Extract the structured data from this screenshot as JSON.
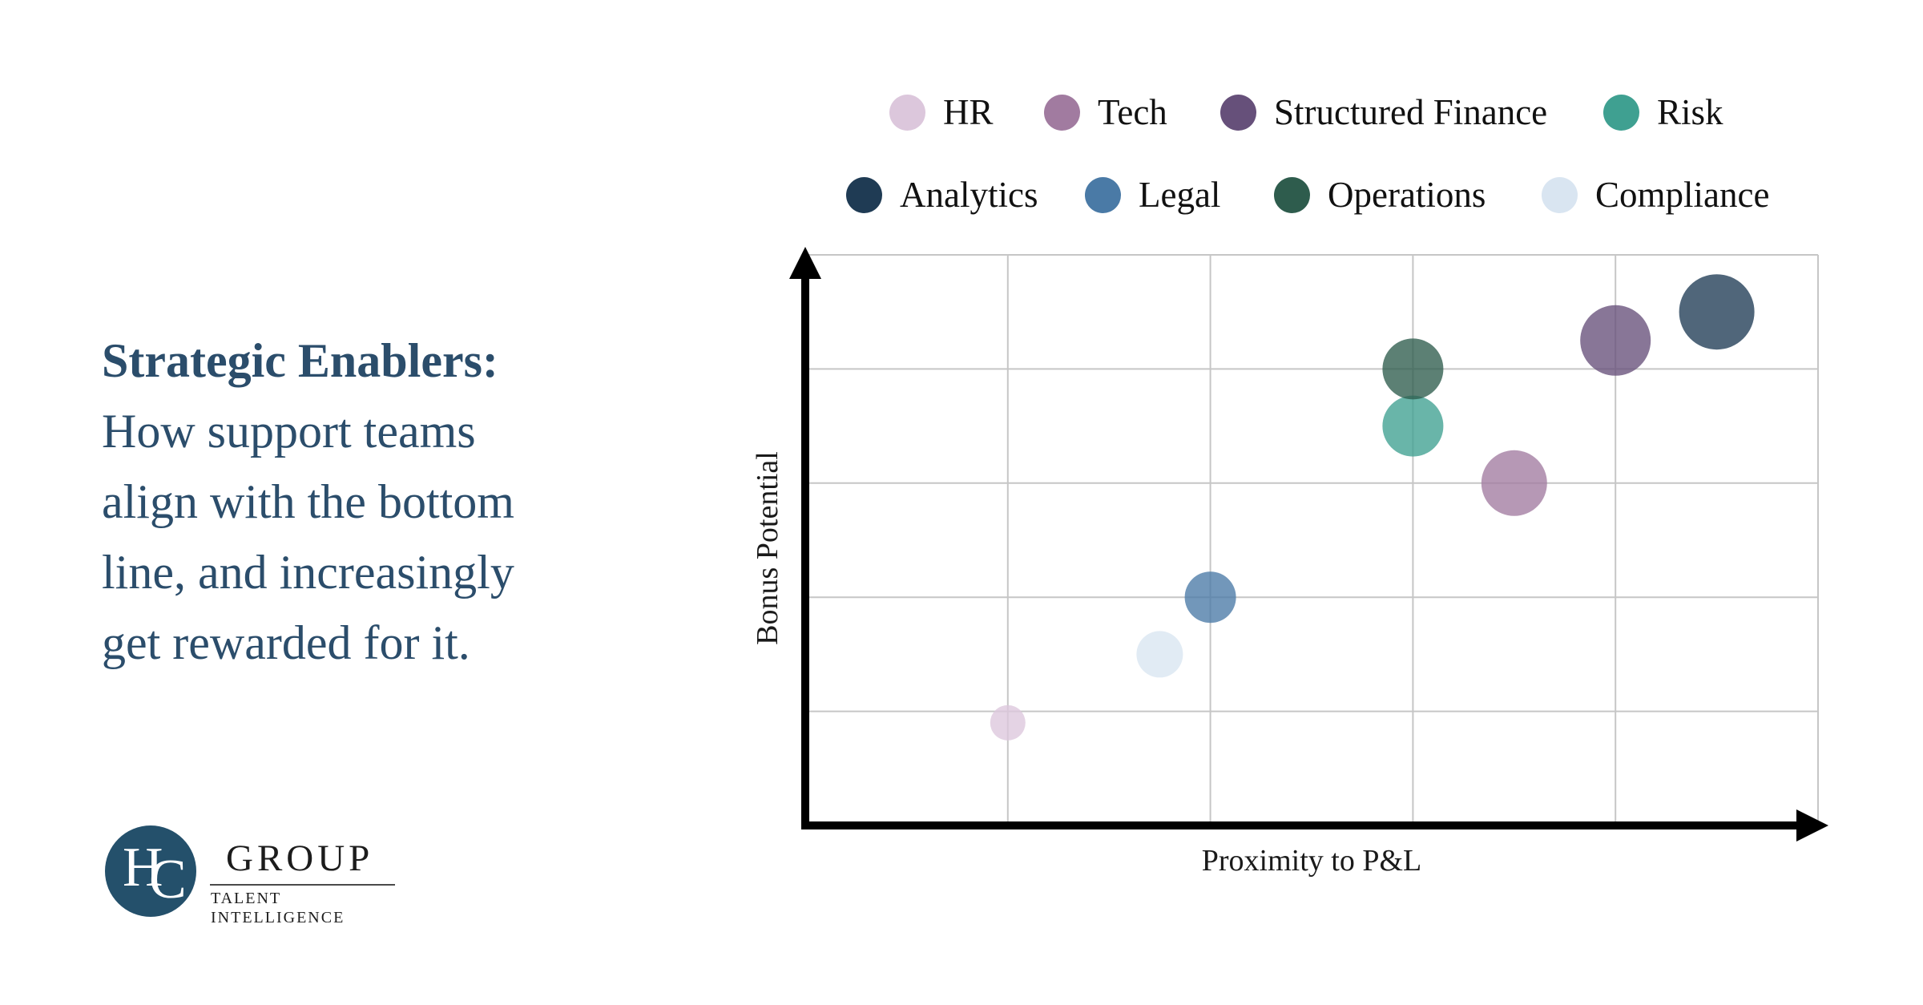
{
  "page": {
    "background_color": "#ffffff",
    "headline_color": "#2b4d6b"
  },
  "headline": {
    "bold": "Strategic Enablers:",
    "lines": [
      "How support teams",
      "align with the bottom",
      "line, and increasingly",
      "get rewarded for it."
    ]
  },
  "logo": {
    "monogram_h": "H",
    "monogram_c": "C",
    "name": "GROUP",
    "tagline": "TALENT INTELLIGENCE",
    "circle_color": "#24506b"
  },
  "chart_data": {
    "type": "scatter",
    "subtype": "bubble",
    "title": "",
    "xlabel": "Proximity to P&L",
    "ylabel": "Bonus Potential",
    "xlim": [
      0,
      5
    ],
    "ylim": [
      0,
      5
    ],
    "grid": true,
    "tick_labels_visible": false,
    "legend_position": "top",
    "legend_rows": [
      [
        "HR",
        "Tech",
        "Structured Finance",
        "Risk"
      ],
      [
        "Analytics",
        "Legal",
        "Operations",
        "Compliance"
      ]
    ],
    "bubble_opacity": 0.78,
    "gridline_color": "#c6c6c6",
    "axis_color": "#000000",
    "series": [
      {
        "name": "HR",
        "color": "#dcc7dc",
        "x": 1.0,
        "y": 0.9,
        "r": 22
      },
      {
        "name": "Compliance",
        "color": "#d9e5f1",
        "x": 1.75,
        "y": 1.5,
        "r": 29
      },
      {
        "name": "Legal",
        "color": "#4a7aa6",
        "x": 2.0,
        "y": 2.0,
        "r": 32
      },
      {
        "name": "Risk",
        "color": "#3fa091",
        "x": 3.0,
        "y": 3.5,
        "r": 38
      },
      {
        "name": "Operations",
        "color": "#2e5c4d",
        "x": 3.0,
        "y": 4.0,
        "r": 38
      },
      {
        "name": "Tech",
        "color": "#a17ba0",
        "x": 3.5,
        "y": 3.0,
        "r": 41
      },
      {
        "name": "Structured Finance",
        "color": "#66507a",
        "x": 4.0,
        "y": 4.25,
        "r": 44
      },
      {
        "name": "Analytics",
        "color": "#1f3b54",
        "x": 4.5,
        "y": 4.5,
        "r": 47
      }
    ]
  }
}
